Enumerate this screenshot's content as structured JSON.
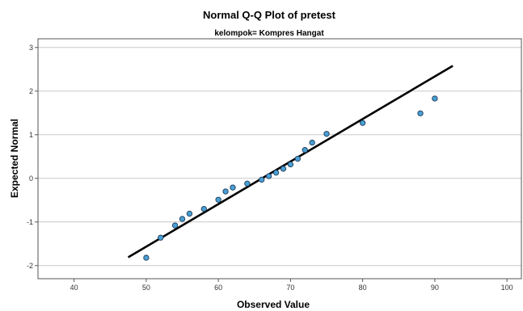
{
  "chart_data": {
    "type": "scatter",
    "title": "Normal Q-Q Plot of pretest",
    "subtitle": "kelompok= Kompres Hangat",
    "xlabel": "Observed Value",
    "ylabel": "Expected Normal",
    "xlim": [
      35,
      102
    ],
    "ylim": [
      -2.3,
      3.2
    ],
    "x_ticks": [
      "40",
      "50",
      "60",
      "70",
      "80",
      "90",
      "100"
    ],
    "y_ticks": [
      "-2",
      "-1",
      "0",
      "1",
      "2",
      "3"
    ],
    "grid": "horizontal",
    "colors": {
      "point_fill": "#4a9fd4",
      "point_stroke": "#1a3a57",
      "line": "#000000",
      "grid": "#c8c8c8",
      "frame": "#555555"
    },
    "points": [
      {
        "x": 50,
        "y": -1.82
      },
      {
        "x": 52,
        "y": -1.36
      },
      {
        "x": 54,
        "y": -1.08
      },
      {
        "x": 55,
        "y": -0.93
      },
      {
        "x": 56,
        "y": -0.81
      },
      {
        "x": 58,
        "y": -0.7
      },
      {
        "x": 60,
        "y": -0.49
      },
      {
        "x": 61,
        "y": -0.3
      },
      {
        "x": 62,
        "y": -0.21
      },
      {
        "x": 64,
        "y": -0.12
      },
      {
        "x": 66,
        "y": -0.03
      },
      {
        "x": 67,
        "y": 0.05
      },
      {
        "x": 68,
        "y": 0.13
      },
      {
        "x": 69,
        "y": 0.22
      },
      {
        "x": 70,
        "y": 0.32
      },
      {
        "x": 71,
        "y": 0.45
      },
      {
        "x": 72,
        "y": 0.65
      },
      {
        "x": 73,
        "y": 0.82
      },
      {
        "x": 75,
        "y": 1.02
      },
      {
        "x": 80,
        "y": 1.27
      },
      {
        "x": 88,
        "y": 1.49
      },
      {
        "x": 90,
        "y": 1.83
      }
    ],
    "reference_line": [
      {
        "x": 47.5,
        "y": -1.81
      },
      {
        "x": 92.5,
        "y": 2.58
      }
    ]
  }
}
